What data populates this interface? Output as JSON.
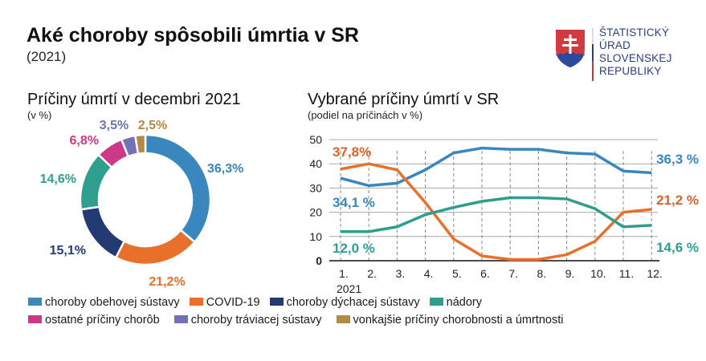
{
  "header": {
    "title": "Aké choroby spôsobili úmrtia v SR",
    "subtitle": "(2021)"
  },
  "logo": {
    "icon": "slovak-coat-of-arms-icon",
    "lines": [
      "ŠTATISTICKÝ",
      "ÚRAD",
      "SLOVENSKEJ",
      "REPUBLIKY"
    ]
  },
  "chart_data": [
    {
      "type": "pie",
      "variant": "donut",
      "title": "Príčiny úmrtí v decembri 2021",
      "subtitle": "(v %)",
      "slices": [
        {
          "label": "choroby obehovej sústavy",
          "value": 36.3,
          "display": "36,3%",
          "color": "#3a87bd"
        },
        {
          "label": "COVID-19",
          "value": 21.2,
          "display": "21,2%",
          "color": "#e8702a"
        },
        {
          "label": "choroby dýchacej sústavy",
          "value": 15.1,
          "display": "15,1%",
          "color": "#243a73"
        },
        {
          "label": "nádory",
          "value": 14.6,
          "display": "14,6%",
          "color": "#2f9e8f"
        },
        {
          "label": "ostatné príčiny chorôb",
          "value": 6.8,
          "display": "6,8%",
          "color": "#cc3a87"
        },
        {
          "label": "choroby tráviacej sústavy",
          "value": 3.5,
          "display": "3,5%",
          "color": "#7272b4"
        },
        {
          "label": "vonkajšie príčiny chorobnosti a úmrtnosti",
          "value": 2.5,
          "display": "2,5%",
          "color": "#b38a45"
        }
      ]
    },
    {
      "type": "line",
      "title": "Vybrané príčiny úmrtí v SR",
      "subtitle": "(podiel na príčinách v %)",
      "x": [
        "1.",
        "2.",
        "3.",
        "4.",
        "5.",
        "6.",
        "7.",
        "8.",
        "9.",
        "10.",
        "11.",
        "12."
      ],
      "xlabel": "2021",
      "ylabel": "",
      "ylim": [
        0,
        50
      ],
      "yticks": [
        "0",
        "10",
        "20",
        "30",
        "40",
        "50"
      ],
      "grid": "horizontal solid, vertical dashed",
      "series": [
        {
          "name": "choroby obehovej sústavy",
          "color": "#3a87bd",
          "values": [
            34.1,
            31.0,
            32.0,
            37.5,
            44.5,
            46.5,
            46.0,
            46.0,
            44.5,
            44.0,
            37.0,
            36.3
          ],
          "start_label": "34,1 %",
          "end_label": "36,3 %"
        },
        {
          "name": "COVID-19",
          "color": "#e8702a",
          "values": [
            37.8,
            40.0,
            37.5,
            24.0,
            9.0,
            2.0,
            0.5,
            0.5,
            2.5,
            8.0,
            20.0,
            21.2
          ],
          "start_label": "37,8%",
          "end_label": "21,2 %"
        },
        {
          "name": "nádory",
          "color": "#2f9e8f",
          "values": [
            12.0,
            12.0,
            14.0,
            19.0,
            22.0,
            24.5,
            26.0,
            26.0,
            25.5,
            21.5,
            14.0,
            14.6
          ],
          "start_label": "12,0 %",
          "end_label": "14,6 %"
        }
      ]
    }
  ],
  "legend": {
    "rows": [
      [
        {
          "label": "choroby obehovej sústavy",
          "color": "#3a87bd"
        },
        {
          "label": "COVID-19",
          "color": "#e8702a"
        },
        {
          "label": "choroby dýchacej sústavy",
          "color": "#243a73"
        },
        {
          "label": "nádory",
          "color": "#2f9e8f"
        }
      ],
      [
        {
          "label": "ostatné príčiny chorôb",
          "color": "#cc3a87"
        },
        {
          "label": "choroby tráviacej sústavy",
          "color": "#7272b4"
        },
        {
          "label": "vonkajšie príčiny chorobnosti a úmrtnosti",
          "color": "#b38a45"
        }
      ]
    ]
  }
}
